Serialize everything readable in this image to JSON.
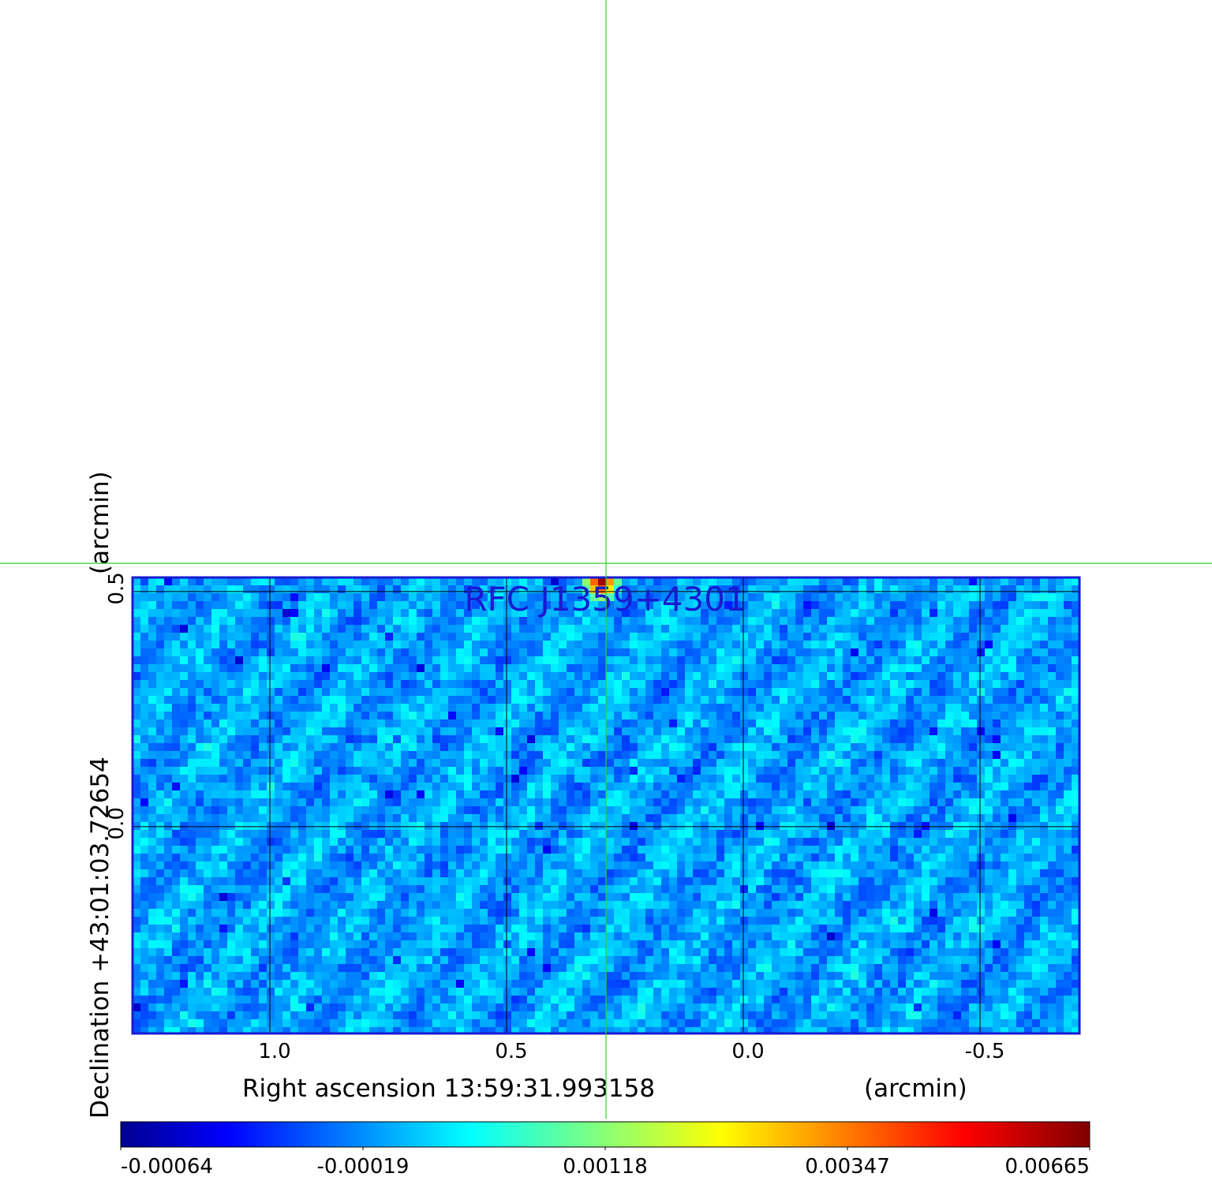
{
  "chart_data": {
    "type": "heatmap",
    "title": "RFC J1359+4301",
    "xlabel": "Right ascension  13:59:31.993158",
    "xlabel_unit": "(arcmin)",
    "ylabel": "Declination  +43:01:03.72654",
    "ylabel_unit": "(arcmin)",
    "xlim": [
      1.29,
      -0.71
    ],
    "ylim": [
      -0.44,
      0.53
    ],
    "x_ticks": [
      {
        "value": 1.0,
        "label": "1.0"
      },
      {
        "value": 0.5,
        "label": "0.5"
      },
      {
        "value": 0.0,
        "label": "0.0"
      },
      {
        "value": -0.5,
        "label": "-0.5"
      }
    ],
    "y_ticks": [
      {
        "value": 0.5,
        "label": "0.5"
      },
      {
        "value": 0.0,
        "label": "0.0"
      }
    ],
    "grid": true,
    "grid_x": [
      1.0,
      0.5,
      0.0,
      -0.5
    ],
    "grid_y": [
      0.5,
      0.0
    ],
    "colormap": "jet",
    "colorbar": {
      "placement": "bottom",
      "min": -0.00064,
      "max": 0.00665,
      "ticks": [
        {
          "value": -0.00064,
          "label": "-0.00064"
        },
        {
          "value": -0.00019,
          "label": "-0.00019"
        },
        {
          "value": 0.00118,
          "label": "0.00118"
        },
        {
          "value": 0.00347,
          "label": "0.00347"
        },
        {
          "value": 0.00665,
          "label": "0.00665"
        }
      ]
    },
    "peak": {
      "x": 0.3,
      "y": 0.52
    },
    "crosshair": {
      "x": 0.29,
      "y": 0.56,
      "color": "#33cc33"
    },
    "frame_color": "#1a1ad0",
    "grid_color": "#000000"
  }
}
